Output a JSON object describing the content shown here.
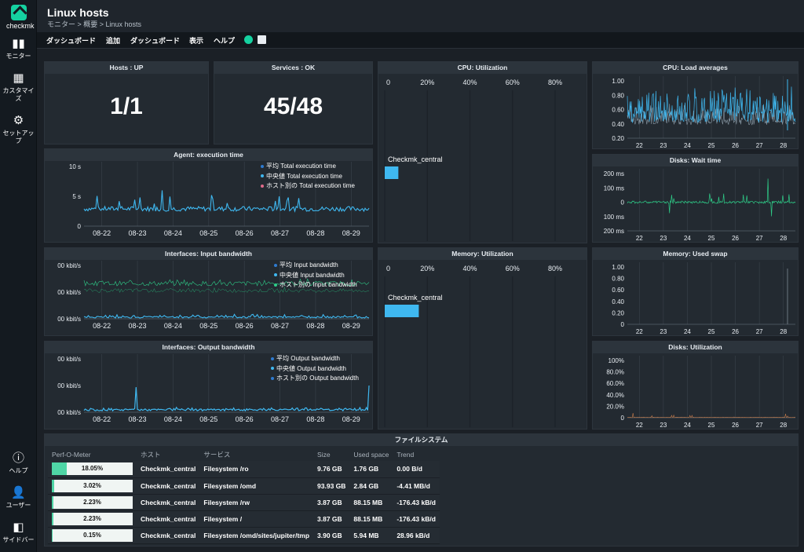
{
  "app": {
    "logo_text": "checkmk"
  },
  "sidebar": {
    "items": [
      {
        "label": "モニター",
        "icon": "bar-chart-icon"
      },
      {
        "label": "カスタマイズ",
        "icon": "grid-icon"
      },
      {
        "label": "セットアップ",
        "icon": "gear-icon"
      },
      {
        "label": "ヘルプ",
        "icon": "info-icon"
      },
      {
        "label": "ユーザー",
        "icon": "user-icon"
      },
      {
        "label": "サイドバー",
        "icon": "sidebar-icon"
      }
    ]
  },
  "header": {
    "title": "Linux hosts",
    "breadcrumb": "モニター > 概要 > Linux hosts"
  },
  "menu": {
    "items": [
      "ダッシュボード",
      "追加",
      "ダッシュボード",
      "表示",
      "ヘルプ"
    ],
    "active": 0
  },
  "colors": {
    "accent": "#15d1a0",
    "series_blue": "#3fb8f0",
    "series_green": "#2ecc88"
  },
  "tiles": {
    "hosts": {
      "title": "Hosts : UP",
      "value": "1/1"
    },
    "services": {
      "title": "Services : OK",
      "value": "45/48"
    }
  },
  "dates_a": [
    "08-22",
    "08-23",
    "08-24",
    "08-25",
    "08-26",
    "08-27",
    "08-28",
    "08-29"
  ],
  "dates_b": [
    "22",
    "23",
    "24",
    "25",
    "26",
    "27",
    "28"
  ],
  "agent": {
    "title": "Agent: execution time",
    "yticks": [
      "10 s",
      "5 s",
      "0"
    ],
    "legend": [
      "平均 Total execution time",
      "中央値 Total execution time",
      "ホスト別の Total execution time"
    ]
  },
  "in_bw": {
    "title": "Interfaces: Input bandwidth",
    "yticks": [
      "00 kbit/s",
      "00 kbit/s",
      "00 kbit/s"
    ],
    "legend": [
      "平均 Input bandwidth",
      "中央値 Input bandwidth",
      "ホスト別の Input bandwidth"
    ]
  },
  "out_bw": {
    "title": "Interfaces: Output bandwidth",
    "yticks": [
      "00 kbit/s",
      "00 kbit/s",
      "00 kbit/s"
    ],
    "legend": [
      "平均 Output bandwidth",
      "中央値 Output bandwidth",
      "ホスト別の Output bandwidth"
    ]
  },
  "cpu_util": {
    "title": "CPU: Utilization",
    "xticks": [
      "0",
      "20%",
      "40%",
      "60%",
      "80%"
    ],
    "host": "Checkmk_central",
    "value": 8
  },
  "mem_util": {
    "title": "Memory: Utilization",
    "xticks": [
      "0",
      "20%",
      "40%",
      "60%",
      "80%"
    ],
    "host": "Checkmk_central",
    "value": 20
  },
  "cpu_load": {
    "title": "CPU: Load averages",
    "yticks": [
      "1.00",
      "0.80",
      "0.60",
      "0.40",
      "0.20"
    ]
  },
  "disk_wait": {
    "title": "Disks: Wait time",
    "yticks": [
      "200 ms",
      "100 ms",
      "0",
      "100 ms",
      "200 ms"
    ]
  },
  "swap": {
    "title": "Memory: Used swap",
    "yticks": [
      "1.00",
      "0.80",
      "0.60",
      "0.40",
      "0.20",
      "0"
    ]
  },
  "disk_util": {
    "title": "Disks: Utilization",
    "yticks": [
      "100%",
      "80.0%",
      "60.0%",
      "40.0%",
      "20.0%",
      "0"
    ]
  },
  "fs": {
    "title": "ファイルシステム",
    "columns": [
      "Perf-O-Meter",
      "ホスト",
      "サービス",
      "Size",
      "Used space",
      "Trend"
    ],
    "rows": [
      {
        "pct": 18.05,
        "pct_label": "18.05%",
        "host": "Checkmk_central",
        "service": "Filesystem /ro",
        "size": "9.76 GB",
        "used": "1.76 GB",
        "trend": "0.00 B/d"
      },
      {
        "pct": 3.02,
        "pct_label": "3.02%",
        "host": "Checkmk_central",
        "service": "Filesystem /omd",
        "size": "93.93 GB",
        "used": "2.84 GB",
        "trend": "-4.41 MB/d"
      },
      {
        "pct": 2.23,
        "pct_label": "2.23%",
        "host": "Checkmk_central",
        "service": "Filesystem /rw",
        "size": "3.87 GB",
        "used": "88.15 MB",
        "trend": "-176.43 kB/d"
      },
      {
        "pct": 2.23,
        "pct_label": "2.23%",
        "host": "Checkmk_central",
        "service": "Filesystem /",
        "size": "3.87 GB",
        "used": "88.15 MB",
        "trend": "-176.43 kB/d"
      },
      {
        "pct": 0.15,
        "pct_label": "0.15%",
        "host": "Checkmk_central",
        "service": "Filesystem /omd/sites/jupiter/tmp",
        "size": "3.90 GB",
        "used": "5.94 MB",
        "trend": "28.96 kB/d"
      }
    ]
  }
}
